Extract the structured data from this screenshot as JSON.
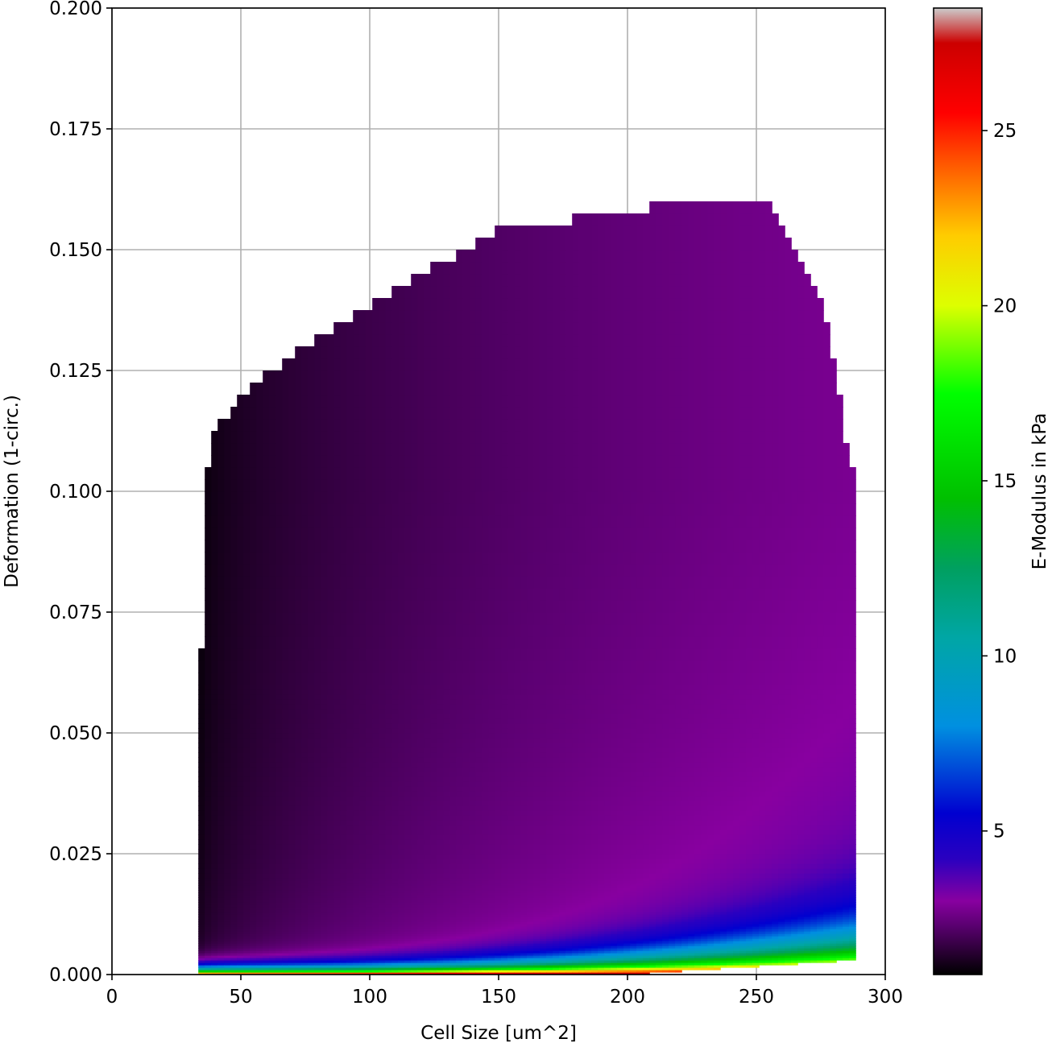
{
  "chart_data": {
    "type": "heatmap",
    "title": "",
    "xlabel": "Cell Size [um^2]",
    "ylabel": "Deformation (1-circ.)",
    "xlim": [
      0,
      300
    ],
    "ylim": [
      0,
      0.2
    ],
    "xticks": [
      0,
      50,
      100,
      150,
      200,
      250,
      300
    ],
    "xtick_labels": [
      "0",
      "50",
      "100",
      "150",
      "200",
      "250",
      "300"
    ],
    "yticks": [
      0,
      0.025,
      0.05,
      0.075,
      0.1,
      0.125,
      0.15,
      0.175,
      0.2
    ],
    "ytick_labels": [
      "0.000",
      "0.025",
      "0.050",
      "0.075",
      "0.100",
      "0.125",
      "0.150",
      "0.175",
      "0.200"
    ],
    "grid": true,
    "colormap": "nipy_spectral",
    "colorbar": {
      "label": "E-Modulus in kPa",
      "range": [
        0.9,
        28.5
      ],
      "ticks": [
        5,
        10,
        15,
        20,
        25
      ],
      "tick_labels": [
        "5",
        "10",
        "15",
        "20",
        "25"
      ]
    },
    "region_outline": [
      [
        34.5,
        0.0
      ],
      [
        34.5,
        0.058
      ],
      [
        35.5,
        0.097
      ],
      [
        37.5,
        0.107
      ],
      [
        38.5,
        0.111
      ],
      [
        45,
        0.116
      ],
      [
        55,
        0.123
      ],
      [
        70,
        0.128
      ],
      [
        90,
        0.135
      ],
      [
        110,
        0.142
      ],
      [
        130,
        0.148
      ],
      [
        148,
        0.154
      ],
      [
        175,
        0.156
      ],
      [
        200,
        0.158
      ],
      [
        230,
        0.1605
      ],
      [
        250,
        0.16
      ],
      [
        257,
        0.159
      ],
      [
        263,
        0.152
      ],
      [
        270,
        0.144
      ],
      [
        275,
        0.14
      ],
      [
        281,
        0.125
      ],
      [
        285,
        0.11
      ],
      [
        288.5,
        0.103
      ],
      [
        289,
        0.06
      ],
      [
        289,
        0.003
      ],
      [
        200,
        0.0
      ],
      [
        100,
        0.0
      ],
      [
        34.5,
        0.0
      ]
    ],
    "colorscale_stops": [
      {
        "value": 0.9,
        "color": "#000000"
      },
      {
        "value": 2.3,
        "color": "#5a0070"
      },
      {
        "value": 3.0,
        "color": "#8800a0"
      },
      {
        "value": 4.2,
        "color": "#2a00c0"
      },
      {
        "value": 5.5,
        "color": "#0000d0"
      },
      {
        "value": 8.0,
        "color": "#0090e0"
      },
      {
        "value": 10.5,
        "color": "#00a6a6"
      },
      {
        "value": 12.5,
        "color": "#00a060"
      },
      {
        "value": 14.5,
        "color": "#00c000"
      },
      {
        "value": 17.5,
        "color": "#00ff00"
      },
      {
        "value": 20.0,
        "color": "#ddff00"
      },
      {
        "value": 22.0,
        "color": "#ffcc00"
      },
      {
        "value": 24.0,
        "color": "#ff5a00"
      },
      {
        "value": 25.5,
        "color": "#ff0000"
      },
      {
        "value": 27.5,
        "color": "#cc0000"
      },
      {
        "value": 28.5,
        "color": "#cccccc"
      }
    ]
  }
}
